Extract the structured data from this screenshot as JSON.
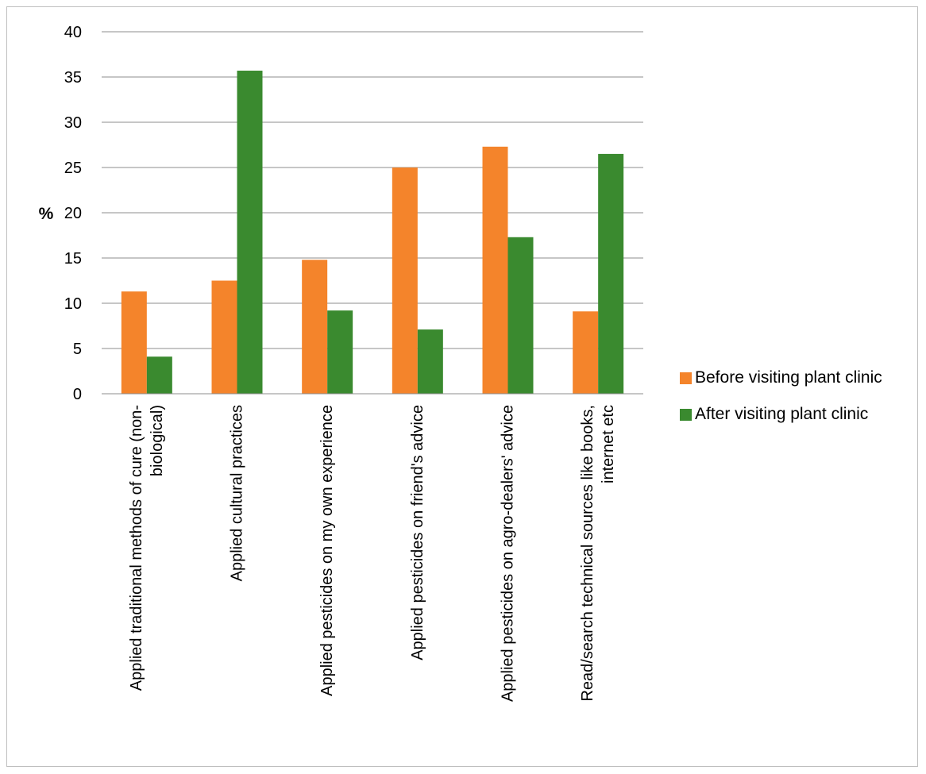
{
  "chart_data": {
    "type": "bar",
    "title": "",
    "xlabel": "",
    "ylabel": "%",
    "ylim": [
      0,
      40
    ],
    "yticks": [
      0,
      5,
      10,
      15,
      20,
      25,
      30,
      35,
      40
    ],
    "grid": true,
    "legend_position": "right",
    "categories": [
      [
        "Applied traditional methods of cure (non-",
        "biological)"
      ],
      [
        "Applied cultural practices"
      ],
      [
        "Applied pesticides on my own experience"
      ],
      [
        "Applied pesticides on friend's advice"
      ],
      [
        "Applied pesticides on agro-dealers' advice"
      ],
      [
        "Read/search technical sources like books,",
        "internet etc"
      ]
    ],
    "series": [
      {
        "name": "Before visiting plant clinic",
        "color": "#f4842b",
        "values": [
          11.3,
          12.5,
          14.8,
          25.0,
          27.3,
          9.1
        ]
      },
      {
        "name": "After visiting plant clinic",
        "color": "#3a8a2f",
        "values": [
          4.1,
          35.7,
          9.2,
          7.1,
          17.3,
          26.5
        ]
      }
    ]
  }
}
